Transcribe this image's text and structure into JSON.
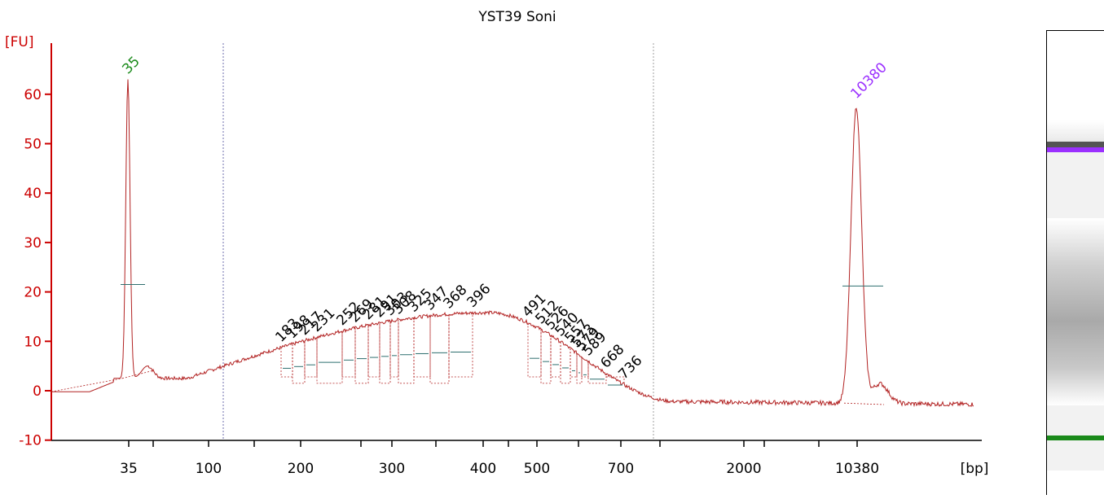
{
  "chart_data": {
    "type": "line",
    "title": "YST39 Soni",
    "ylabel": "[FU]",
    "xlabel": "[bp]",
    "ylim": [
      -10,
      68
    ],
    "yticks": [
      -10,
      0,
      10,
      20,
      30,
      40,
      50,
      60
    ],
    "x_tick_labels": [
      "35",
      "100",
      "200",
      "300",
      "400",
      "500",
      "700",
      "2000",
      "10380"
    ],
    "markers": [
      {
        "label": "35",
        "height": 63,
        "color": "#1a8a1a"
      },
      {
        "label": "10380",
        "height": 58,
        "color": "#9b30ff"
      }
    ],
    "peak_labels": [
      "183",
      "198",
      "217",
      "231",
      "252",
      "269",
      "281",
      "291",
      "303",
      "308",
      "325",
      "347",
      "368",
      "396",
      "491",
      "512",
      "526",
      "540",
      "557",
      "573",
      "579",
      "589",
      "668",
      "736"
    ],
    "series": [
      {
        "color": "#b22222"
      }
    ],
    "gel_lanes": [
      {
        "marker": "10380",
        "color": "#9b30ff"
      },
      {
        "marker": "35",
        "color": "#1a8a1a"
      }
    ]
  }
}
